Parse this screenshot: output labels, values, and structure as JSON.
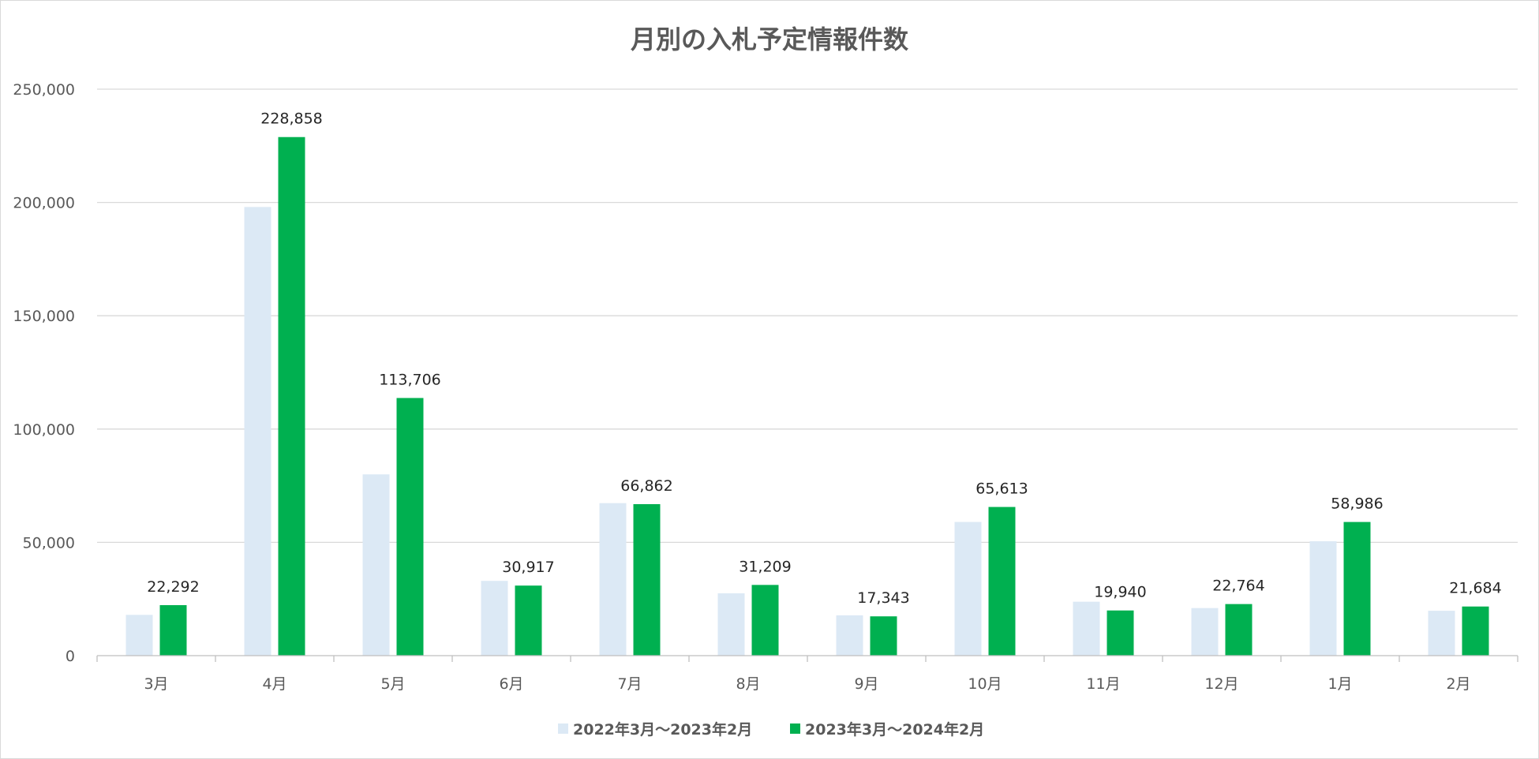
{
  "chart_data": {
    "type": "bar",
    "title": "月別の入札予定情報件数",
    "xlabel": "",
    "ylabel": "",
    "categories": [
      "3月",
      "4月",
      "5月",
      "6月",
      "7月",
      "8月",
      "9月",
      "10月",
      "11月",
      "12月",
      "1月",
      "2月"
    ],
    "ylim": [
      0,
      250000
    ],
    "yticks": [
      0,
      50000,
      100000,
      150000,
      200000,
      250000
    ],
    "ytick_labels": [
      "0",
      "50,000",
      "100,000",
      "150,000",
      "200,000",
      "250,000"
    ],
    "grid": true,
    "legend_position": "bottom",
    "series": [
      {
        "name": "2022年3月～2023年2月",
        "color": "#dce9f5",
        "values": [
          18000,
          198000,
          80000,
          33000,
          67300,
          27500,
          17800,
          59000,
          23800,
          21000,
          50500,
          19800
        ],
        "data_labels": []
      },
      {
        "name": "2023年3月～2024年2月",
        "color": "#00b050",
        "values": [
          22292,
          228858,
          113706,
          30917,
          66862,
          31209,
          17343,
          65613,
          19940,
          22764,
          58986,
          21684
        ],
        "data_labels": [
          "22,292",
          "228,858",
          "113,706",
          "30,917",
          "66,862",
          "31,209",
          "17,343",
          "65,613",
          "19,940",
          "22,764",
          "58,986",
          "21,684"
        ]
      }
    ]
  }
}
